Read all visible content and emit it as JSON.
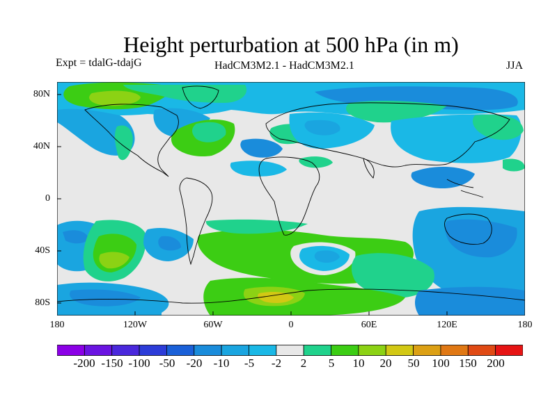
{
  "title": "Height perturbation at 500 hPa (in m)",
  "experiment": "Expt = tdalG-tdajG",
  "models": "HadCM3M2.1 - HadCM3M2.1",
  "season": "JJA",
  "axes": {
    "y_ticks": [
      "80N",
      "40N",
      "0",
      "40S",
      "80S"
    ],
    "x_ticks": [
      "180",
      "120W",
      "60W",
      "0",
      "60E",
      "120E",
      "180"
    ]
  },
  "colorbar": {
    "labels": [
      "-200",
      "-150",
      "-100",
      "-50",
      "-20",
      "-10",
      "-5",
      "-2",
      "2",
      "5",
      "10",
      "20",
      "50",
      "100",
      "150",
      "200"
    ],
    "colors": [
      "#8b00e6",
      "#6a14e1",
      "#4a28dc",
      "#2c3cd8",
      "#1a60d8",
      "#1a8cdb",
      "#1aa5e0",
      "#1ab8e6",
      "#e8e8e8",
      "#20d28c",
      "#3ccd14",
      "#8cd214",
      "#d2c814",
      "#dca014",
      "#e07814",
      "#e04a14",
      "#e61414"
    ]
  },
  "colors": {
    "background": "#e8e8e8",
    "light_blue": "#1ab8e6",
    "mid_blue": "#1aa5e0",
    "blue": "#1a8cdb",
    "teal_green": "#20d28c",
    "green": "#3ccd14",
    "yellow_green": "#8cd214",
    "yellow": "#d2c814"
  }
}
